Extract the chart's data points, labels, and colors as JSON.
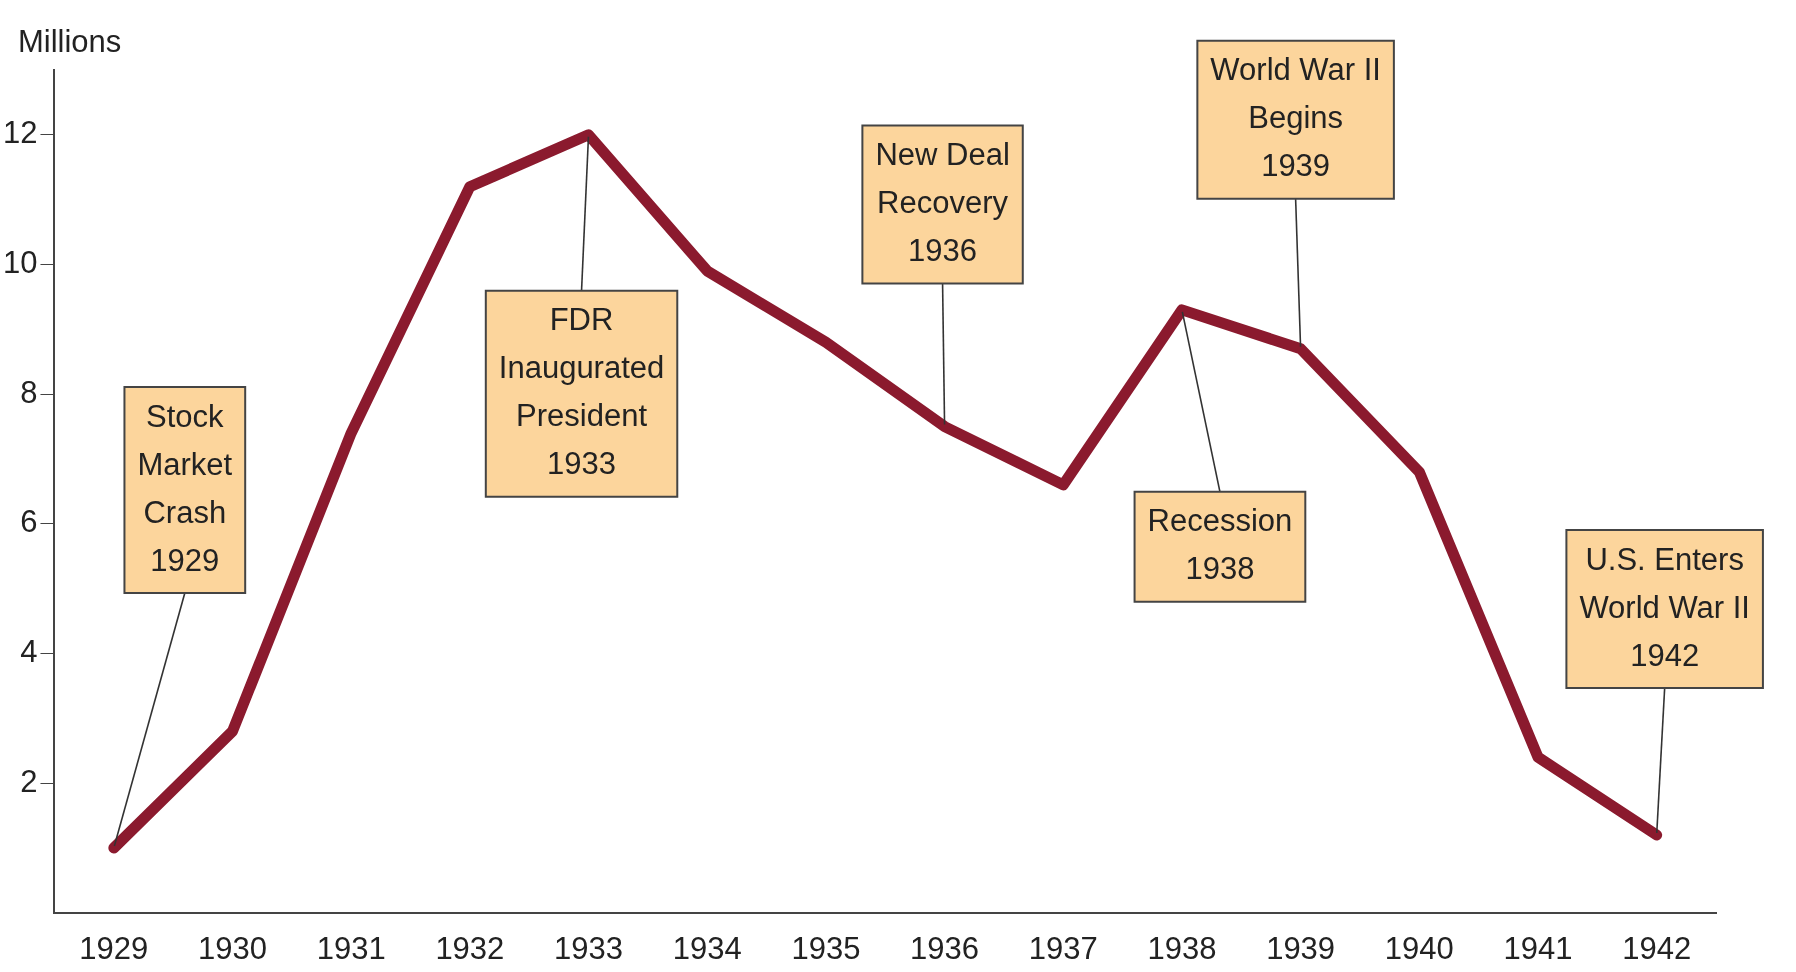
{
  "chart_data": {
    "type": "line",
    "ylabel": "Millions",
    "categories": [
      "1929",
      "1930",
      "1931",
      "1932",
      "1933",
      "1934",
      "1935",
      "1936",
      "1937",
      "1938",
      "1939",
      "1940",
      "1941",
      "1942"
    ],
    "series": [
      {
        "color": "#8b1a2e",
        "values": [
          1.0,
          2.8,
          7.4,
          11.2,
          12.0,
          9.9,
          8.8,
          7.5,
          6.6,
          9.3,
          8.7,
          6.8,
          2.4,
          1.2
        ]
      }
    ],
    "ylim": [
      0,
      13
    ],
    "yticks": [
      2,
      4,
      6,
      8,
      10,
      12
    ],
    "grid": false,
    "legend": false,
    "marker": "none",
    "line_style": "solid",
    "annotations": [
      {
        "text": "Stock\nMarket\nCrash\n1929",
        "x": "1929",
        "y": 1.0
      },
      {
        "text": "FDR\nInaugurated\nPresident\n1933",
        "x": "1933",
        "y": 12.0
      },
      {
        "text": "New Deal\nRecovery\n1936",
        "x": "1936",
        "y": 7.5
      },
      {
        "text": "World War II\nBegins\n1939",
        "x": "1939",
        "y": 8.7
      },
      {
        "text": "Recession\n1938",
        "x": "1938",
        "y": 9.3
      },
      {
        "text": "U.S. Enters\nWorld War II\n1942",
        "x": "1942",
        "y": 1.2
      }
    ]
  }
}
